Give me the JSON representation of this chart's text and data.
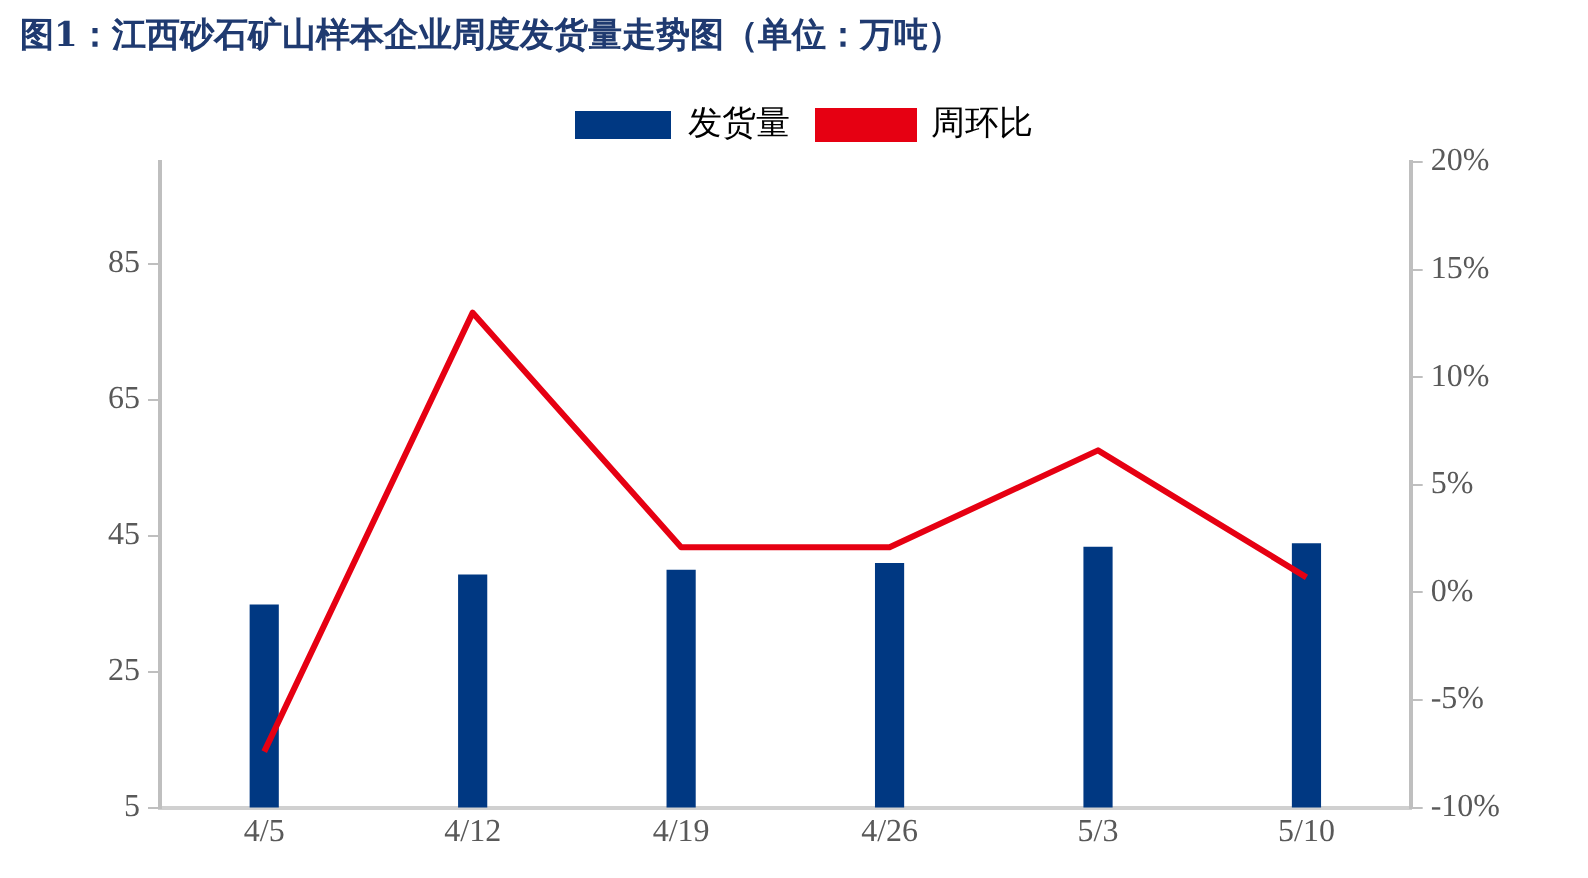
{
  "chart_data": {
    "type": "bar",
    "title": "图1：江西砂石矿山样本企业周度发货量走势图（单位：万吨）",
    "categories": [
      "4/5",
      "4/12",
      "4/19",
      "4/26",
      "5/3",
      "5/10"
    ],
    "series": [
      {
        "name": "发货量",
        "color": "#003882",
        "values": [
          34.9,
          39.3,
          40,
          41,
          43.4,
          43.9
        ]
      },
      {
        "name": "周环比",
        "type": "line",
        "axis": "y2",
        "color": "#e60012",
        "values": [
          -7.4,
          13.0,
          2.1,
          2.1,
          6.6,
          0.7
        ]
      }
    ],
    "ylim": [
      5,
      100
    ],
    "yticks": [
      5,
      25,
      45,
      65,
      85
    ],
    "y2lim": [
      -10,
      20
    ],
    "y2ticks": [
      {
        "value": -10,
        "label": "-10%"
      },
      {
        "value": -5,
        "label": "-5%"
      },
      {
        "value": 0,
        "label": "0%"
      },
      {
        "value": 5,
        "label": "5%"
      },
      {
        "value": 10,
        "label": "10%"
      },
      {
        "value": 15,
        "label": "15%"
      },
      {
        "value": 20,
        "label": "20%"
      }
    ],
    "grid": false,
    "legend": "top",
    "marker": "none",
    "line_style": "solid"
  }
}
